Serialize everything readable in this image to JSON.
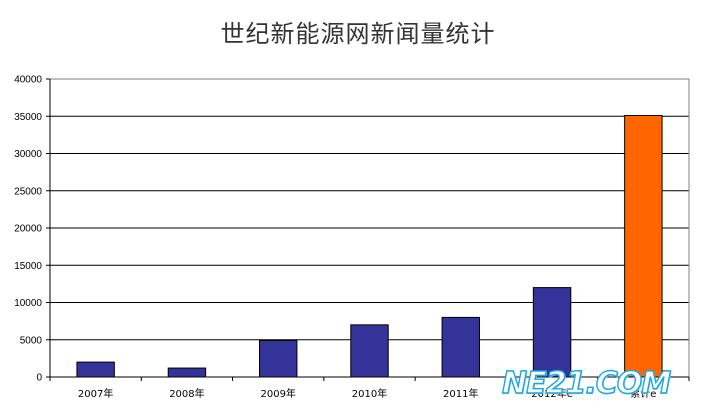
{
  "chart_data": {
    "type": "bar",
    "title": "世纪新能源网新闻量统计",
    "categories": [
      "2007年",
      "2008年",
      "2009年",
      "2010年",
      "2011年",
      "2012年e",
      "累计e"
    ],
    "values": [
      2000,
      1200,
      4900,
      7000,
      8000,
      12000,
      35100
    ],
    "bar_colors": [
      "#333399",
      "#333399",
      "#333399",
      "#333399",
      "#333399",
      "#333399",
      "#ff6600"
    ],
    "ylim": [
      0,
      40000
    ],
    "yticks": [
      0,
      5000,
      10000,
      15000,
      20000,
      25000,
      30000,
      35000,
      40000
    ],
    "grid": true,
    "legend": "none"
  },
  "watermark": {
    "text": "NE21.COM",
    "color": "#1aa6e0"
  }
}
